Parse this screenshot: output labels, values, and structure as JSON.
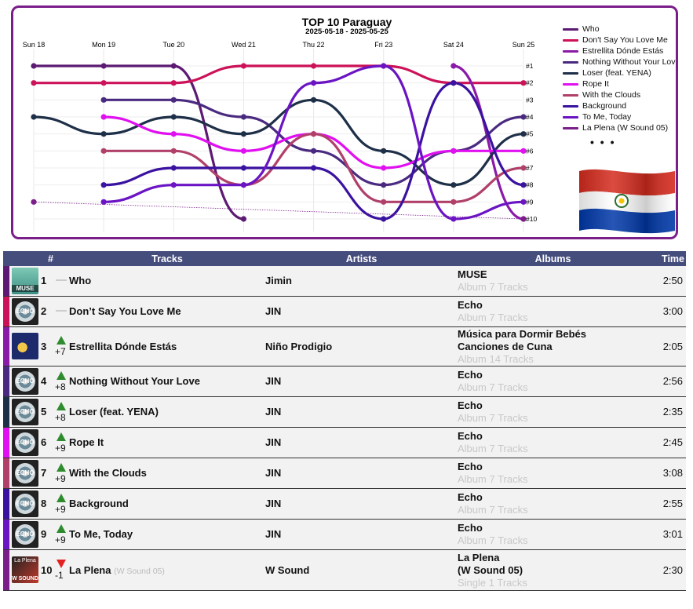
{
  "chart_data": {
    "type": "line",
    "title": "TOP 10 Paraguay",
    "subtitle": "2025-05-18 - 2025-05-25",
    "x": [
      "Sun 18",
      "Mon 19",
      "Tue 20",
      "Wed 21",
      "Thu 22",
      "Fri 23",
      "Sat 24",
      "Sun 25"
    ],
    "ylim": [
      1,
      10
    ],
    "y_reversed": true,
    "rank_labels": [
      "#1",
      "#2",
      "#3",
      "#4",
      "#5",
      "#6",
      "#7",
      "#8",
      "#9",
      "#10"
    ],
    "grid": true,
    "legend_position": "right",
    "series": [
      {
        "name": "Who",
        "color": "#5c1a72",
        "values": [
          1,
          1,
          1,
          10,
          null,
          null,
          null,
          null
        ]
      },
      {
        "name": "Don't Say You Love Me",
        "color": "#cc1258",
        "values": [
          2,
          2,
          2,
          1,
          1,
          1,
          2,
          2
        ]
      },
      {
        "name": "Estrellita Dónde Estás",
        "color": "#8a1aa8",
        "values": [
          null,
          null,
          null,
          null,
          null,
          null,
          1,
          10
        ]
      },
      {
        "name": "Nothing Without Your Love",
        "color": "#4a2a80",
        "values": [
          null,
          3,
          3,
          4,
          6,
          8,
          6,
          4
        ]
      },
      {
        "name": "Loser (feat. YENA)",
        "color": "#1e2f48",
        "values": [
          4,
          5,
          4,
          5,
          3,
          6,
          8,
          5
        ]
      },
      {
        "name": "Rope It",
        "color": "#e010f0",
        "values": [
          null,
          4,
          5,
          6,
          5,
          7,
          6,
          6
        ]
      },
      {
        "name": "With the Clouds",
        "color": "#b0406a",
        "values": [
          null,
          6,
          6,
          8,
          5,
          9,
          9,
          7
        ]
      },
      {
        "name": "Background",
        "color": "#3a12a0",
        "values": [
          null,
          8,
          7,
          7,
          7,
          10,
          2,
          8
        ]
      },
      {
        "name": "To Me, Today",
        "color": "#6a14c4",
        "values": [
          null,
          9,
          8,
          8,
          2,
          1,
          10,
          9
        ]
      },
      {
        "name": "La Plena (W Sound 05)",
        "color": "#7a1f8a",
        "values": [
          9,
          null,
          null,
          null,
          null,
          null,
          null,
          10
        ]
      }
    ]
  },
  "legend": {
    "items": [
      {
        "label": "Who",
        "color": "#5c1a72"
      },
      {
        "label": "Don't Say You Love Me",
        "color": "#cc1258"
      },
      {
        "label": "Estrellita Dónde Estás",
        "color": "#8a1aa8"
      },
      {
        "label": "Nothing Without Your Love",
        "color": "#4a2a80"
      },
      {
        "label": "Loser (feat. YENA)",
        "color": "#1e2f48"
      },
      {
        "label": "Rope It",
        "color": "#e010f0"
      },
      {
        "label": "With the Clouds",
        "color": "#b0406a"
      },
      {
        "label": "Background",
        "color": "#3a12a0"
      },
      {
        "label": "To Me, Today",
        "color": "#6a14c4"
      },
      {
        "label": "La Plena (W Sound 05)",
        "color": "#7a1f8a"
      }
    ],
    "more": "• • •"
  },
  "table": {
    "headers": {
      "num": "#",
      "tracks": "Tracks",
      "artists": "Artists",
      "albums": "Albums",
      "time": "Time"
    },
    "rows": [
      {
        "rank": "1",
        "change": "",
        "dir": "same",
        "track": "Who",
        "feat": "",
        "artist": "Jimin",
        "album": "MUSE",
        "album2": "",
        "meta": "Album 7 Tracks",
        "time": "2:50",
        "color": "#5c1a72",
        "cover": "muse",
        "cover_text": "MUSE",
        "cover_text2": ""
      },
      {
        "rank": "2",
        "change": "",
        "dir": "same",
        "track": "Don’t Say You Love Me",
        "feat": "",
        "artist": "JIN",
        "album": "Echo",
        "album2": "",
        "meta": "Album 7 Tracks",
        "time": "3:00",
        "color": "#cc1258",
        "cover": "echo",
        "cover_text": "ECHO",
        "cover_text2": ""
      },
      {
        "rank": "3",
        "change": "+7",
        "dir": "up",
        "track": "Estrellita Dónde Estás",
        "feat": "",
        "artist": "Niño Prodigio",
        "album": "Música para Dormir Bebés",
        "album2": "Canciones de Cuna",
        "meta": "Album 14 Tracks",
        "time": "2:05",
        "color": "#8a1aa8",
        "cover": "nino",
        "cover_text": "",
        "cover_text2": ""
      },
      {
        "rank": "4",
        "change": "+8",
        "dir": "up",
        "track": "Nothing Without Your Love",
        "feat": "",
        "artist": "JIN",
        "album": "Echo",
        "album2": "",
        "meta": "Album 7 Tracks",
        "time": "2:56",
        "color": "#4a2a80",
        "cover": "echo",
        "cover_text": "ECHO",
        "cover_text2": ""
      },
      {
        "rank": "5",
        "change": "+8",
        "dir": "up",
        "track": "Loser (feat. YENA)",
        "feat": "",
        "artist": "JIN",
        "album": "Echo",
        "album2": "",
        "meta": "Album 7 Tracks",
        "time": "2:35",
        "color": "#1e2f48",
        "cover": "echo",
        "cover_text": "ECHO",
        "cover_text2": ""
      },
      {
        "rank": "6",
        "change": "+9",
        "dir": "up",
        "track": "Rope It",
        "feat": "",
        "artist": "JIN",
        "album": "Echo",
        "album2": "",
        "meta": "Album 7 Tracks",
        "time": "2:45",
        "color": "#e010f0",
        "cover": "echo",
        "cover_text": "ECHO",
        "cover_text2": ""
      },
      {
        "rank": "7",
        "change": "+9",
        "dir": "up",
        "track": "With the Clouds",
        "feat": "",
        "artist": "JIN",
        "album": "Echo",
        "album2": "",
        "meta": "Album 7 Tracks",
        "time": "3:08",
        "color": "#b0406a",
        "cover": "echo",
        "cover_text": "ECHO",
        "cover_text2": ""
      },
      {
        "rank": "8",
        "change": "+9",
        "dir": "up",
        "track": "Background",
        "feat": "",
        "artist": "JIN",
        "album": "Echo",
        "album2": "",
        "meta": "Album 7 Tracks",
        "time": "2:55",
        "color": "#3a12a0",
        "cover": "echo",
        "cover_text": "ECHO",
        "cover_text2": ""
      },
      {
        "rank": "9",
        "change": "+9",
        "dir": "up",
        "track": "To Me, Today",
        "feat": "",
        "artist": "JIN",
        "album": "Echo",
        "album2": "",
        "meta": "Album 7 Tracks",
        "time": "3:01",
        "color": "#6a14c4",
        "cover": "echo",
        "cover_text": "ECHO",
        "cover_text2": ""
      },
      {
        "rank": "10",
        "change": "-1",
        "dir": "down",
        "track": "La Plena",
        "feat": "(W Sound 05)",
        "artist": "W Sound",
        "album": "La Plena",
        "album2": "(W Sound 05)",
        "meta": "Single 1 Tracks",
        "time": "2:30",
        "color": "#7a1f8a",
        "cover": "wsound",
        "cover_text": "W SOUND",
        "cover_text2": "La Plena"
      }
    ]
  },
  "flag": {
    "name": "paraguay-flag",
    "colors": [
      "#d52b1e",
      "#ffffff",
      "#0038a8"
    ]
  }
}
